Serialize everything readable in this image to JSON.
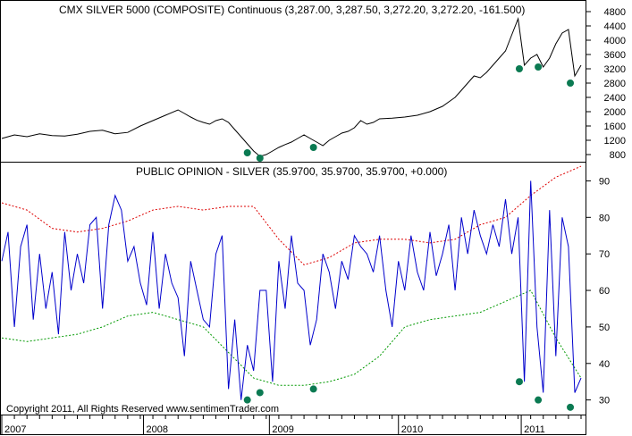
{
  "chart_data": [
    {
      "type": "line",
      "title": "CMX SILVER 5000 (COMPOSITE) Continuous (3,287.00, 3,287.50, 3,272.20, 3,272.20, -161.500)",
      "ylim": [
        600,
        5000
      ],
      "yticks": [
        800,
        1200,
        1600,
        2000,
        2400,
        2800,
        3200,
        3600,
        4000,
        4400,
        4800
      ],
      "grid": false,
      "series": [
        {
          "color": "#000000",
          "t": [
            0,
            2,
            4,
            6,
            8,
            10,
            12,
            14,
            16,
            18,
            20,
            22,
            24,
            26,
            28,
            29,
            30,
            31,
            32,
            33,
            34,
            35,
            36,
            37,
            38,
            39,
            40,
            41,
            42,
            43,
            44,
            45,
            46,
            47,
            48,
            49,
            50,
            51,
            52,
            53,
            54,
            55,
            56,
            57,
            58,
            59,
            60,
            62,
            64,
            66,
            68,
            70,
            72,
            73,
            74,
            75,
            76,
            77,
            78,
            79,
            80,
            81,
            82,
            83,
            84,
            85,
            86,
            87,
            88,
            89,
            90,
            91,
            92
          ],
          "values": [
            1250,
            1350,
            1300,
            1380,
            1330,
            1320,
            1370,
            1450,
            1480,
            1380,
            1420,
            1600,
            1750,
            1900,
            2050,
            1950,
            1850,
            1760,
            1700,
            1650,
            1750,
            1800,
            1700,
            1500,
            1300,
            1100,
            900,
            750,
            800,
            900,
            1000,
            1080,
            1150,
            1250,
            1350,
            1250,
            1150,
            1050,
            1200,
            1300,
            1400,
            1450,
            1550,
            1750,
            1650,
            1700,
            1800,
            1820,
            1850,
            1900,
            2000,
            2150,
            2400,
            2600,
            2800,
            3000,
            2950,
            3100,
            3300,
            3500,
            3700,
            4150,
            4600,
            3300,
            3500,
            3600,
            3250,
            3500,
            3900,
            4200,
            4300,
            3000,
            3300
          ]
        }
      ],
      "markers": [
        {
          "t": 39,
          "value": 850
        },
        {
          "t": 41,
          "value": 700
        },
        {
          "t": 49.5,
          "value": 1000
        },
        {
          "t": 82.2,
          "value": 3200
        },
        {
          "t": 85.2,
          "value": 3250
        },
        {
          "t": 90.3,
          "value": 2800
        }
      ]
    },
    {
      "type": "line",
      "title": "PUBLIC OPINION - SILVER (35.9700, 35.9700, 35.9700, +0.000)",
      "ylim": [
        26,
        95
      ],
      "yticks": [
        30,
        40,
        50,
        60,
        70,
        80,
        90
      ],
      "xlabels": [
        "2007",
        "2008",
        "2009",
        "2010",
        "2011"
      ],
      "x_year_start_t": [
        0,
        22.5,
        42.5,
        63,
        82.5
      ],
      "grid": false,
      "series": [
        {
          "color": "#0000cc",
          "t": [
            0,
            1,
            2,
            3,
            4,
            5,
            6,
            7,
            8,
            9,
            10,
            11,
            12,
            13,
            14,
            15,
            16,
            17,
            18,
            19,
            20,
            21,
            22,
            23,
            24,
            25,
            26,
            27,
            28,
            29,
            30,
            31,
            32,
            33,
            34,
            35,
            36,
            37,
            38,
            39,
            40,
            41,
            42,
            43,
            44,
            45,
            46,
            47,
            48,
            49,
            50,
            51,
            52,
            53,
            54,
            55,
            56,
            57,
            58,
            59,
            60,
            61,
            62,
            63,
            64,
            65,
            66,
            67,
            68,
            69,
            70,
            71,
            72,
            73,
            74,
            75,
            76,
            77,
            78,
            79,
            80,
            81,
            82,
            83,
            84,
            85,
            86,
            87,
            88,
            89,
            90,
            91,
            92
          ],
          "values": [
            68,
            76,
            50,
            72,
            78,
            52,
            70,
            55,
            65,
            48,
            76,
            60,
            70,
            62,
            78,
            80,
            55,
            78,
            86,
            82,
            68,
            72,
            62,
            56,
            76,
            55,
            70,
            62,
            58,
            42,
            68,
            60,
            52,
            50,
            70,
            75,
            33,
            52,
            30,
            45,
            38,
            60,
            60,
            35,
            68,
            55,
            75,
            62,
            60,
            45,
            52,
            70,
            65,
            55,
            68,
            63,
            75,
            72,
            70,
            65,
            75,
            60,
            50,
            68,
            60,
            75,
            65,
            60,
            76,
            64,
            70,
            78,
            60,
            80,
            70,
            82,
            75,
            70,
            78,
            72,
            85,
            70,
            80,
            35,
            90,
            50,
            32,
            82,
            42,
            80,
            72,
            32,
            36
          ]
        },
        {
          "color": "#dd0000",
          "dashed": true,
          "t": [
            0,
            4,
            8,
            12,
            16,
            20,
            24,
            28,
            32,
            36,
            40,
            44,
            48,
            52,
            56,
            60,
            64,
            68,
            72,
            76,
            80,
            84,
            88,
            92
          ],
          "values": [
            84,
            82,
            77,
            76,
            77,
            79,
            82,
            83,
            82,
            83,
            83,
            74,
            67,
            69,
            73,
            74,
            74,
            73,
            74,
            78,
            80,
            86,
            91,
            94
          ]
        },
        {
          "color": "#009900",
          "dashed": true,
          "t": [
            0,
            4,
            8,
            12,
            16,
            20,
            24,
            28,
            32,
            36,
            40,
            44,
            48,
            52,
            56,
            60,
            64,
            68,
            72,
            76,
            80,
            84,
            88,
            92
          ],
          "values": [
            47,
            46,
            47,
            48,
            50,
            53,
            54,
            52,
            50,
            43,
            36,
            34,
            34,
            35,
            37,
            42,
            50,
            52,
            53,
            54,
            57,
            60,
            47,
            36
          ]
        }
      ],
      "markers": [
        {
          "t": 39,
          "value": 30
        },
        {
          "t": 41,
          "value": 32
        },
        {
          "t": 49.5,
          "value": 33
        },
        {
          "t": 82.2,
          "value": 35
        },
        {
          "t": 85.2,
          "value": 30
        },
        {
          "t": 90.3,
          "value": 28
        }
      ],
      "annotation": "Copyright 2011, All Rights Reserved  www.sentimenTrader.com"
    }
  ]
}
